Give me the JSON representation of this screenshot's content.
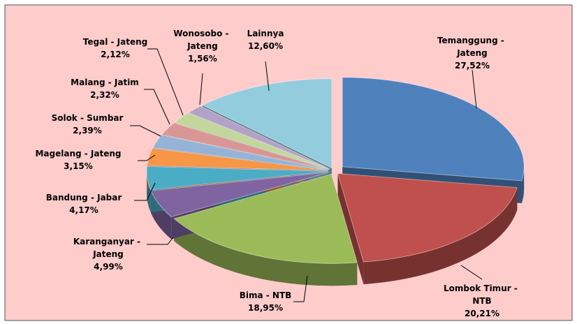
{
  "chart_data": {
    "type": "pie",
    "categories": [
      "Temanggung - Jateng",
      "Lombok Timur - NTB",
      "Bima - NTB",
      "Karanganyar - Jateng",
      "Bandung - Jabar",
      "Magelang - Jateng",
      "Solok - Sumbar",
      "Malang - Jatim",
      "Tegal - Jateng",
      "Wonosobo - Jateng",
      "Lainnya"
    ],
    "values": [
      27.52,
      20.21,
      18.95,
      4.99,
      4.17,
      3.15,
      2.39,
      2.32,
      2.12,
      1.56,
      12.6
    ],
    "value_labels": [
      "27,52%",
      "20,21%",
      "18,95%",
      "4,99%",
      "4,17%",
      "3,15%",
      "2,39%",
      "2,32%",
      "2,12%",
      "1,56%",
      "12,60%"
    ],
    "colors": [
      "#4f81bd",
      "#c0504d",
      "#9bbb59",
      "#8064a2",
      "#4bacc6",
      "#f79646",
      "#95b3d7",
      "#d99694",
      "#c3d69b",
      "#b3a2c7",
      "#93cddd"
    ]
  }
}
